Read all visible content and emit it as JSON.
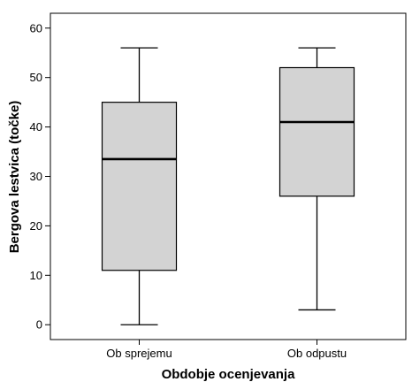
{
  "chart_data": {
    "type": "box",
    "title": "",
    "xlabel": "Obdobje ocenjevanja",
    "ylabel": "Bergova lestvica (točke)",
    "ylim": [
      -3,
      63
    ],
    "yticks": [
      0,
      10,
      20,
      30,
      40,
      50,
      60
    ],
    "categories": [
      "Ob sprejemu",
      "Ob odpustu"
    ],
    "boxes": [
      {
        "category": "Ob sprejemu",
        "min": 0,
        "q1": 11,
        "median": 33.5,
        "q3": 45,
        "max": 56
      },
      {
        "category": "Ob odpustu",
        "min": 3,
        "q1": 26,
        "median": 41,
        "q3": 52,
        "max": 56
      }
    ],
    "grid": false,
    "colors": {
      "box_fill": "#d3d3d3",
      "stroke": "#000000",
      "background": "#ffffff"
    }
  }
}
